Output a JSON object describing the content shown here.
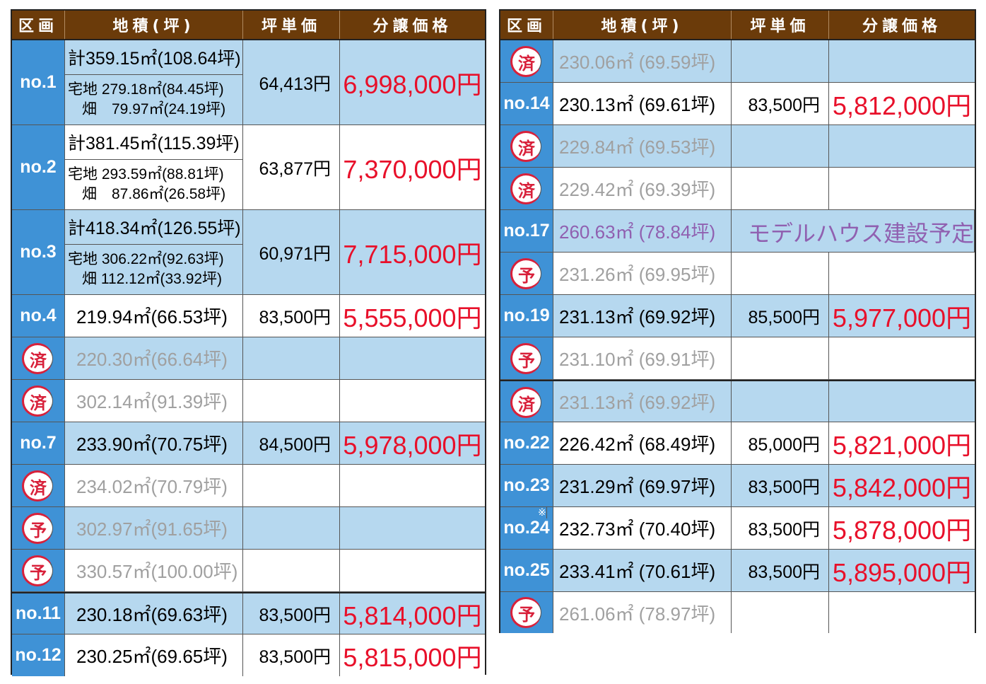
{
  "headers": {
    "lot": "区画",
    "area": "地積(坪)",
    "unit": "坪単価",
    "price": "分譲価格"
  },
  "badges": {
    "sold": "済",
    "reserved": "予"
  },
  "left": {
    "rows": [
      {
        "lot": "no.1",
        "total": "計359.15㎡(108.64坪)",
        "sub1": "宅地 279.18㎡(84.45坪)",
        "sub2": "畑　79.97㎡(24.19坪)",
        "unit": "64,413円",
        "price": "6,998,000円",
        "bg": "lb"
      },
      {
        "lot": "no.2",
        "total": "計381.45㎡(115.39坪)",
        "sub1": "宅地 293.59㎡(88.81坪)",
        "sub2": "畑　87.86㎡(26.58坪)",
        "unit": "63,877円",
        "price": "7,370,000円",
        "bg": "wh"
      },
      {
        "lot": "no.3",
        "total": "計418.34㎡(126.55坪)",
        "sub1": "宅地 306.22㎡(92.63坪)",
        "sub2": "畑 112.12㎡(33.92坪)",
        "unit": "60,971円",
        "price": "7,715,000円",
        "bg": "lb"
      },
      {
        "lot": "no.4",
        "area": "219.94㎡(66.53坪)",
        "unit": "83,500円",
        "price": "5,555,000円",
        "bg": "wh"
      },
      {
        "badge": "済",
        "area": "220.30㎡(66.64坪)",
        "bg": "lb"
      },
      {
        "badge": "済",
        "area": "302.14㎡(91.39坪)",
        "bg": "wh"
      },
      {
        "lot": "no.7",
        "area": "233.90㎡(70.75坪)",
        "unit": "84,500円",
        "price": "5,978,000円",
        "bg": "lb"
      },
      {
        "badge": "済",
        "area": "234.02㎡(70.79坪)",
        "bg": "wh"
      },
      {
        "badge": "予",
        "area": "302.97㎡(91.65坪)",
        "bg": "lb"
      },
      {
        "badge": "予",
        "area": "330.57㎡(100.00坪)",
        "bg": "wh"
      },
      {
        "lot": "no.11",
        "area": "230.18㎡(69.63坪)",
        "unit": "83,500円",
        "price": "5,814,000円",
        "bg": "lb"
      },
      {
        "lot": "no.12",
        "area": "230.25㎡(69.65坪)",
        "unit": "83,500円",
        "price": "5,815,000円",
        "bg": "wh"
      }
    ]
  },
  "right": {
    "note": "モデルハウス建設予定",
    "asterisk": "※",
    "rows": [
      {
        "badge": "済",
        "area": "230.06㎡ (69.59坪)",
        "bg": "lb"
      },
      {
        "lot": "no.14",
        "area": "230.13㎡ (69.61坪)",
        "unit": "83,500円",
        "price": "5,812,000円",
        "bg": "wh"
      },
      {
        "badge": "済",
        "area": "229.84㎡ (69.53坪)",
        "bg": "lb"
      },
      {
        "badge": "済",
        "area": "229.42㎡ (69.39坪)",
        "bg": "wh"
      },
      {
        "lot": "no.17",
        "area": "260.63㎡ (78.84坪)",
        "bg": "lb",
        "purple": true
      },
      {
        "badge": "予",
        "area": "231.26㎡ (69.95坪)",
        "bg": "wh"
      },
      {
        "lot": "no.19",
        "area": "231.13㎡ (69.92坪)",
        "unit": "85,500円",
        "price": "5,977,000円",
        "bg": "lb"
      },
      {
        "badge": "予",
        "area": "231.10㎡ (69.91坪)",
        "bg": "wh"
      },
      {
        "badge": "済",
        "area": "231.13㎡ (69.92坪)",
        "bg": "lb"
      },
      {
        "lot": "no.22",
        "area": "226.42㎡ (68.49坪)",
        "unit": "85,000円",
        "price": "5,821,000円",
        "bg": "wh"
      },
      {
        "lot": "no.23",
        "area": "231.29㎡ (69.97坪)",
        "unit": "83,500円",
        "price": "5,842,000円",
        "bg": "lb"
      },
      {
        "lot": "no.24",
        "area": "232.73㎡ (70.40坪)",
        "unit": "83,500円",
        "price": "5,878,000円",
        "bg": "wh"
      },
      {
        "lot": "no.25",
        "area": "233.41㎡ (70.61坪)",
        "unit": "83,500円",
        "price": "5,895,000円",
        "bg": "lb"
      },
      {
        "badge": "予",
        "area": "261.06㎡ (78.97坪)",
        "bg": "wh"
      }
    ]
  }
}
